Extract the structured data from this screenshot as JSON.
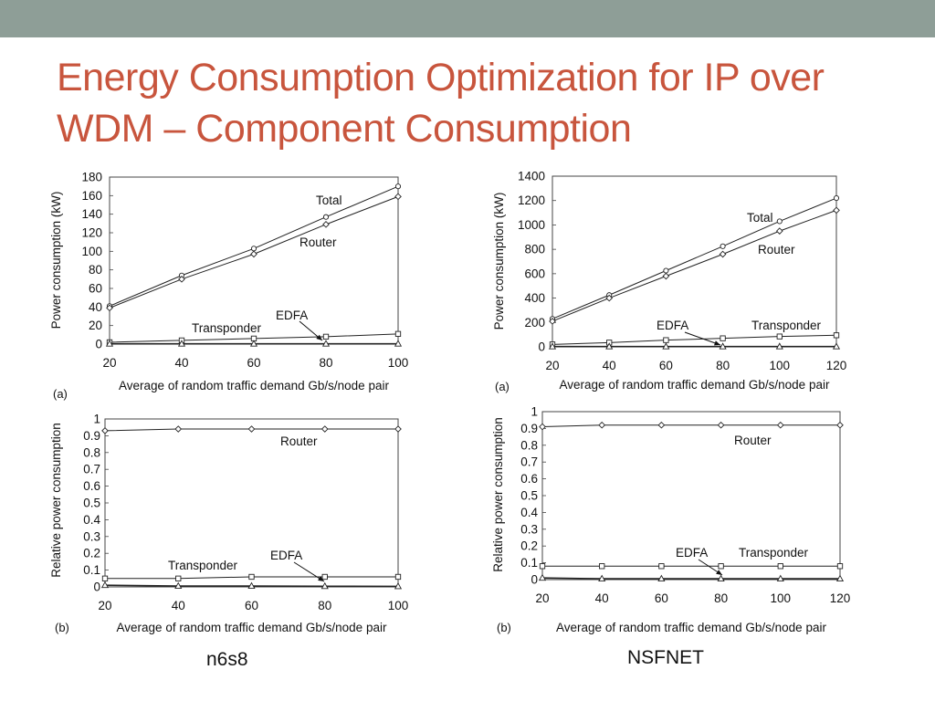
{
  "slide": {
    "title": "Energy Consumption Optimization for IP over WDM – Component Consumption",
    "title_color": "#C8553D",
    "top_bar_color": "#8E9E97"
  },
  "networks": [
    "n6s8",
    "NSFNET"
  ],
  "chart_data": [
    {
      "id": "n6s8-a",
      "network": "n6s8",
      "panel_label": "(a)",
      "type": "line",
      "xlabel": "Average of random traffic demand Gb/s/node pair",
      "ylabel": "Power consumption (kW)",
      "x": [
        20,
        40,
        60,
        80,
        100
      ],
      "xlim": [
        20,
        100
      ],
      "ylim": [
        0,
        180
      ],
      "xticks": [
        20,
        40,
        60,
        80,
        100
      ],
      "yticks": [
        0,
        20,
        40,
        60,
        80,
        100,
        120,
        140,
        160,
        180
      ],
      "grid": false,
      "series": [
        {
          "name": "Total",
          "marker": "circle",
          "values": [
            41,
            74,
            103,
            137,
            170
          ]
        },
        {
          "name": "Router",
          "marker": "diamond",
          "values": [
            39,
            70,
            97,
            129,
            159
          ]
        },
        {
          "name": "Transponder",
          "marker": "square",
          "values": [
            2,
            4,
            6,
            8,
            11
          ]
        },
        {
          "name": "EDFA",
          "marker": "triangle",
          "values": [
            0.3,
            0.3,
            0.3,
            0.3,
            0.3
          ]
        }
      ]
    },
    {
      "id": "nsfnet-a",
      "network": "NSFNET",
      "panel_label": "(a)",
      "type": "line",
      "xlabel": "Average of random traffic demand Gb/s/node pair",
      "ylabel": "Power consumption (kW)",
      "x": [
        20,
        40,
        60,
        80,
        100,
        120
      ],
      "xlim": [
        20,
        120
      ],
      "ylim": [
        0,
        1400
      ],
      "xticks": [
        20,
        40,
        60,
        80,
        100,
        120
      ],
      "yticks": [
        0,
        200,
        400,
        600,
        800,
        1000,
        1200,
        1400
      ],
      "grid": false,
      "series": [
        {
          "name": "Total",
          "marker": "circle",
          "values": [
            230,
            425,
            625,
            825,
            1030,
            1220
          ]
        },
        {
          "name": "Router",
          "marker": "diamond",
          "values": [
            210,
            400,
            580,
            760,
            950,
            1120
          ]
        },
        {
          "name": "Transponder",
          "marker": "square",
          "values": [
            20,
            35,
            55,
            70,
            85,
            95
          ]
        },
        {
          "name": "EDFA",
          "marker": "triangle",
          "values": [
            2,
            2,
            2,
            2,
            2,
            2
          ]
        }
      ]
    },
    {
      "id": "n6s8-b",
      "network": "n6s8",
      "panel_label": "(b)",
      "type": "line",
      "xlabel": "Average of random traffic demand Gb/s/node pair",
      "ylabel": "Relative power consumption",
      "x": [
        20,
        40,
        60,
        80,
        100
      ],
      "xlim": [
        20,
        100
      ],
      "ylim": [
        0,
        1
      ],
      "xticks": [
        20,
        40,
        60,
        80,
        100
      ],
      "yticks": [
        0,
        0.1,
        0.2,
        0.3,
        0.4,
        0.5,
        0.6,
        0.7,
        0.8,
        0.9,
        1
      ],
      "grid": false,
      "series": [
        {
          "name": "Router",
          "marker": "diamond",
          "values": [
            0.93,
            0.94,
            0.94,
            0.94,
            0.94
          ]
        },
        {
          "name": "Transponder",
          "marker": "square",
          "values": [
            0.05,
            0.05,
            0.06,
            0.06,
            0.06
          ]
        },
        {
          "name": "EDFA",
          "marker": "triangle",
          "values": [
            0.01,
            0.005,
            0.005,
            0.004,
            0.003
          ]
        }
      ]
    },
    {
      "id": "nsfnet-b",
      "network": "NSFNET",
      "panel_label": "(b)",
      "type": "line",
      "xlabel": "Average of random traffic demand Gb/s/node pair",
      "ylabel": "Relative power consumption",
      "x": [
        20,
        40,
        60,
        80,
        100,
        120
      ],
      "xlim": [
        20,
        120
      ],
      "ylim": [
        0,
        1
      ],
      "xticks": [
        20,
        40,
        60,
        80,
        100,
        120
      ],
      "yticks": [
        0,
        0.1,
        0.2,
        0.3,
        0.4,
        0.5,
        0.6,
        0.7,
        0.8,
        0.9,
        1
      ],
      "grid": false,
      "series": [
        {
          "name": "Router",
          "marker": "diamond",
          "values": [
            0.91,
            0.92,
            0.92,
            0.92,
            0.92,
            0.92
          ]
        },
        {
          "name": "Transponder",
          "marker": "square",
          "values": [
            0.08,
            0.08,
            0.08,
            0.08,
            0.08,
            0.08
          ]
        },
        {
          "name": "EDFA",
          "marker": "triangle",
          "values": [
            0.01,
            0.005,
            0.005,
            0.005,
            0.005,
            0.005
          ]
        }
      ]
    }
  ]
}
